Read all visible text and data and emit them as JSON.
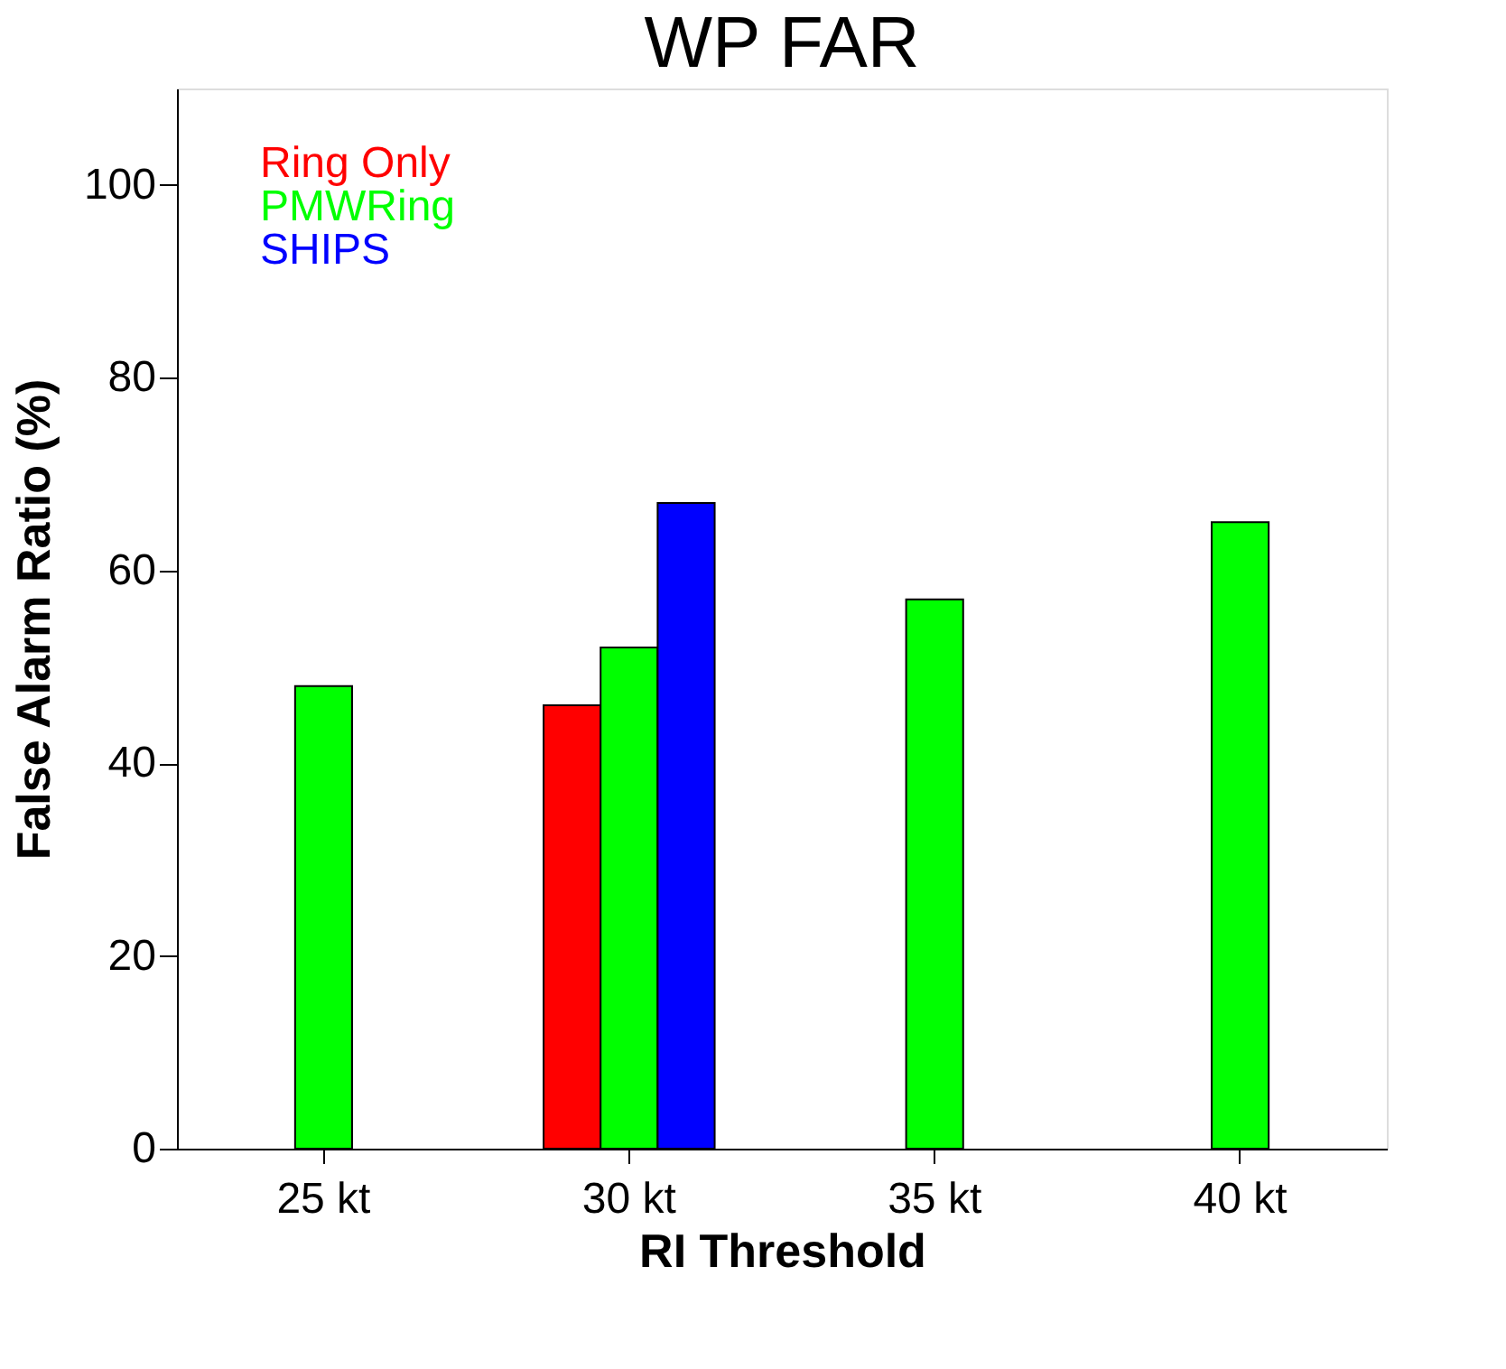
{
  "chart_data": {
    "type": "bar",
    "title": "WP FAR",
    "xlabel": "RI Threshold",
    "ylabel": "False Alarm Ratio (%)",
    "categories": [
      "25 kt",
      "30 kt",
      "35 kt",
      "40 kt"
    ],
    "series": [
      {
        "name": "Ring Only",
        "color": "#ff0000",
        "values": [
          null,
          46,
          null,
          null
        ]
      },
      {
        "name": "PMWRing",
        "color": "#00ff00",
        "values": [
          48,
          52,
          57,
          65
        ]
      },
      {
        "name": "SHIPS",
        "color": "#0000ff",
        "values": [
          null,
          67,
          null,
          null
        ]
      }
    ],
    "ylim": [
      0,
      110
    ],
    "yticks": [
      0,
      20,
      40,
      60,
      80,
      100
    ],
    "grid": false,
    "legend": "top left"
  }
}
